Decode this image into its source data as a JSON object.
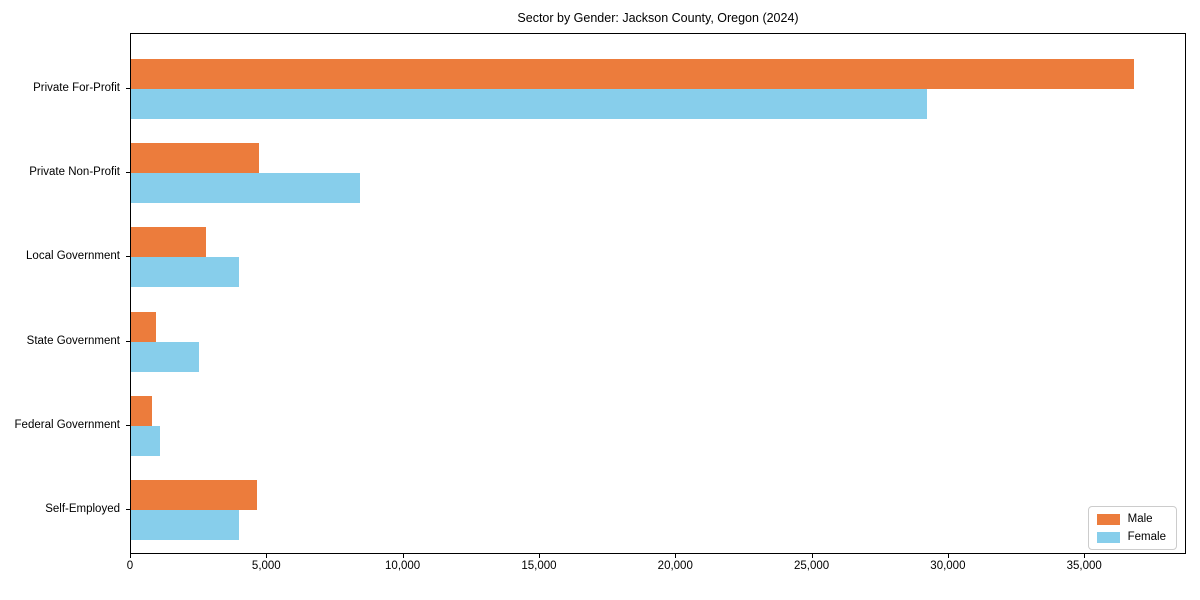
{
  "title": "Sector by Gender: Jackson County, Oregon (2024)",
  "chart_data": {
    "type": "bar",
    "orientation": "horizontal",
    "title": "Sector by Gender: Jackson County, Oregon (2024)",
    "categories": [
      "Private For-Profit",
      "Private Non-Profit",
      "Local Government",
      "State Government",
      "Federal Government",
      "Self-Employed"
    ],
    "series": [
      {
        "name": "Male",
        "color": "#EC7C3C",
        "values": [
          36800,
          4700,
          2750,
          920,
          780,
          4620
        ]
      },
      {
        "name": "Female",
        "color": "#87CEEB",
        "values": [
          29200,
          8400,
          3950,
          2480,
          1080,
          3950
        ]
      }
    ],
    "xlabel": "",
    "ylabel": "",
    "xlim": [
      0,
      38660
    ],
    "x_ticks": [
      0,
      5000,
      10000,
      15000,
      20000,
      25000,
      30000,
      35000
    ],
    "x_tick_labels": [
      "0",
      "5,000",
      "10,000",
      "15,000",
      "20,000",
      "25,000",
      "30,000",
      "35,000"
    ],
    "grid": false,
    "legend_position": "lower right",
    "axis_color": "#000000",
    "background_color": "#ffffff"
  }
}
